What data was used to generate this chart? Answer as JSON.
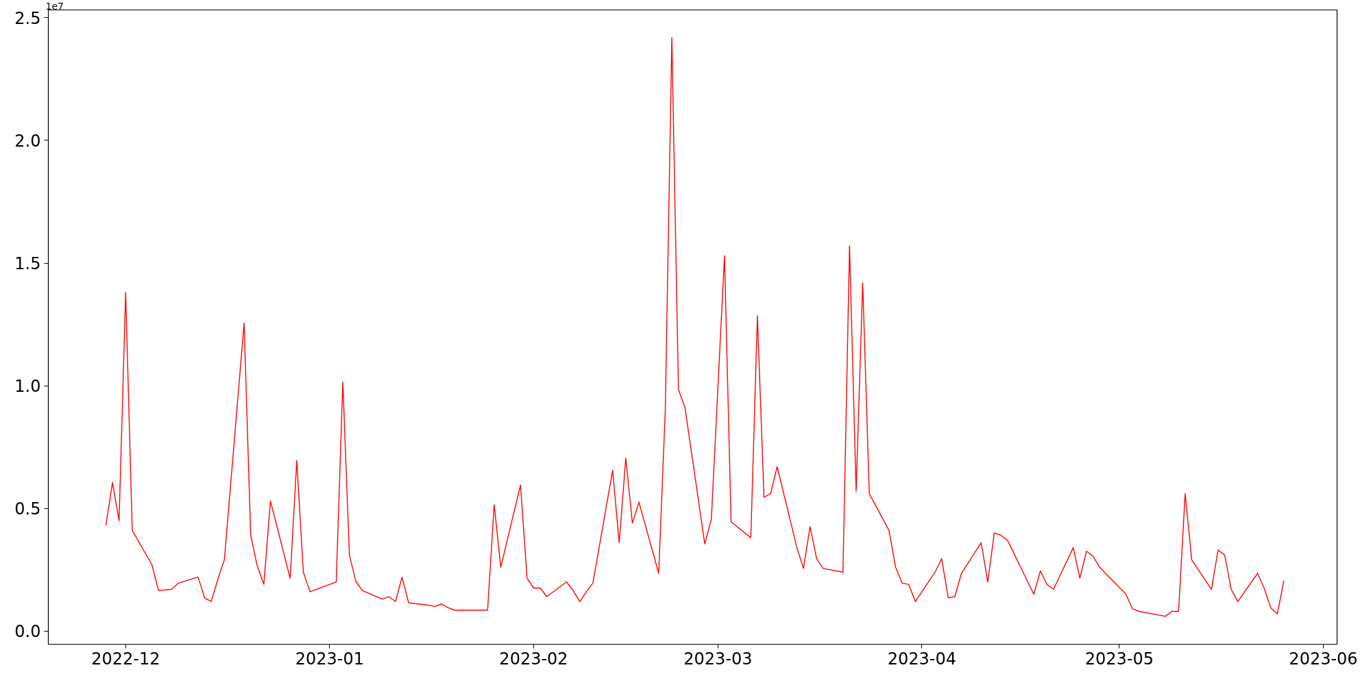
{
  "chart_data": {
    "type": "line",
    "grid": false,
    "marker": "none",
    "line_style": "solid",
    "xlim": [
      "2022-11-19T06:00",
      "2023-06-03T02:00"
    ],
    "ylim": [
      -0.054,
      2.532
    ],
    "xticks": [
      {
        "value": "2022-12-01",
        "label": "2022-12"
      },
      {
        "value": "2023-01-01",
        "label": "2023-01"
      },
      {
        "value": "2023-02-01",
        "label": "2023-02"
      },
      {
        "value": "2023-03-01",
        "label": "2023-03"
      },
      {
        "value": "2023-04-01",
        "label": "2023-04"
      },
      {
        "value": "2023-05-01",
        "label": "2023-05"
      },
      {
        "value": "2023-06-01",
        "label": "2023-06"
      }
    ],
    "yticks": [
      {
        "value": 0,
        "label": "0.0"
      },
      0.5,
      {
        "value": 1,
        "label": "1.0"
      },
      1.5,
      {
        "value": 2,
        "label": "2.0"
      },
      2.5
    ],
    "annotations": [
      "1e7"
    ],
    "x": [
      "2022-11-28",
      "2022-11-29",
      "2022-11-30",
      "2022-12-01",
      "2022-12-02",
      "2022-12-05",
      "2022-12-06",
      "2022-12-08",
      "2022-12-09",
      "2022-12-12",
      "2022-12-13",
      "2022-12-14",
      "2022-12-15",
      "2022-12-16",
      "2022-12-19",
      "2022-12-20",
      "2022-12-21",
      "2022-12-22",
      "2022-12-23",
      "2022-12-26",
      "2022-12-27",
      "2022-12-28",
      "2022-12-29",
      "2023-01-02",
      "2023-01-03",
      "2023-01-04",
      "2023-01-05",
      "2023-01-06",
      "2023-01-09",
      "2023-01-10",
      "2023-01-11",
      "2023-01-12",
      "2023-01-13",
      "2023-01-16",
      "2023-01-17",
      "2023-01-18",
      "2023-01-19",
      "2023-01-20",
      "2023-01-25",
      "2023-01-26",
      "2023-01-27",
      "2023-01-30",
      "2023-01-31",
      "2023-02-01",
      "2023-02-02",
      "2023-02-03",
      "2023-02-06",
      "2023-02-07",
      "2023-02-08",
      "2023-02-09",
      "2023-02-10",
      "2023-02-13",
      "2023-02-14",
      "2023-02-15",
      "2023-02-16",
      "2023-02-17",
      "2023-02-20",
      "2023-02-21",
      "2023-02-22",
      "2023-02-23",
      "2023-02-24",
      "2023-02-27",
      "2023-02-28",
      "2023-03-02",
      "2023-03-03",
      "2023-03-06",
      "2023-03-07",
      "2023-03-08",
      "2023-03-09",
      "2023-03-10",
      "2023-03-13",
      "2023-03-14",
      "2023-03-15",
      "2023-03-16",
      "2023-03-17",
      "2023-03-20",
      "2023-03-21",
      "2023-03-22",
      "2023-03-23",
      "2023-03-24",
      "2023-03-27",
      "2023-03-28",
      "2023-03-29",
      "2023-03-30",
      "2023-03-31",
      "2023-04-03",
      "2023-04-04",
      "2023-04-05",
      "2023-04-06",
      "2023-04-07",
      "2023-04-10",
      "2023-04-11",
      "2023-04-12",
      "2023-04-13",
      "2023-04-14",
      "2023-04-17",
      "2023-04-18",
      "2023-04-19",
      "2023-04-20",
      "2023-04-21",
      "2023-04-24",
      "2023-04-25",
      "2023-04-26",
      "2023-04-27",
      "2023-04-28",
      "2023-05-02",
      "2023-05-03",
      "2023-05-04",
      "2023-05-08",
      "2023-05-09",
      "2023-05-10",
      "2023-05-11",
      "2023-05-12",
      "2023-05-15",
      "2023-05-16",
      "2023-05-17",
      "2023-05-18",
      "2023-05-19",
      "2023-05-22",
      "2023-05-23",
      "2023-05-24",
      "2023-05-25",
      "2023-05-26"
    ],
    "series": [
      {
        "color": "#ff0000",
        "values": [
          0.43,
          0.605,
          0.45,
          1.38,
          0.41,
          0.27,
          0.165,
          0.17,
          0.195,
          0.22,
          0.135,
          0.12,
          0.21,
          0.29,
          1.255,
          0.39,
          0.265,
          0.19,
          0.53,
          0.215,
          0.695,
          0.24,
          0.16,
          0.2,
          1.015,
          0.31,
          0.2,
          0.165,
          0.13,
          0.14,
          0.12,
          0.22,
          0.115,
          0.105,
          0.1,
          0.11,
          0.095,
          0.085,
          0.085,
          0.515,
          0.26,
          0.595,
          0.215,
          0.175,
          0.175,
          0.14,
          0.2,
          0.165,
          0.12,
          0.16,
          0.195,
          0.655,
          0.36,
          0.705,
          0.44,
          0.525,
          0.235,
          0.9,
          2.42,
          0.985,
          0.91,
          0.355,
          0.455,
          1.53,
          0.445,
          0.38,
          1.285,
          0.545,
          0.56,
          0.67,
          0.34,
          0.255,
          0.425,
          0.295,
          0.255,
          0.24,
          1.57,
          0.57,
          1.42,
          0.56,
          0.41,
          0.26,
          0.195,
          0.19,
          0.12,
          0.24,
          0.295,
          0.135,
          0.14,
          0.235,
          0.36,
          0.2,
          0.4,
          0.39,
          0.37,
          0.205,
          0.15,
          0.245,
          0.19,
          0.17,
          0.34,
          0.215,
          0.325,
          0.305,
          0.26,
          0.15,
          0.09,
          0.08,
          0.06,
          0.08,
          0.08,
          0.56,
          0.29,
          0.17,
          0.33,
          0.31,
          0.17,
          0.12,
          0.235,
          0.175,
          0.095,
          0.07,
          0.205
        ]
      }
    ]
  }
}
